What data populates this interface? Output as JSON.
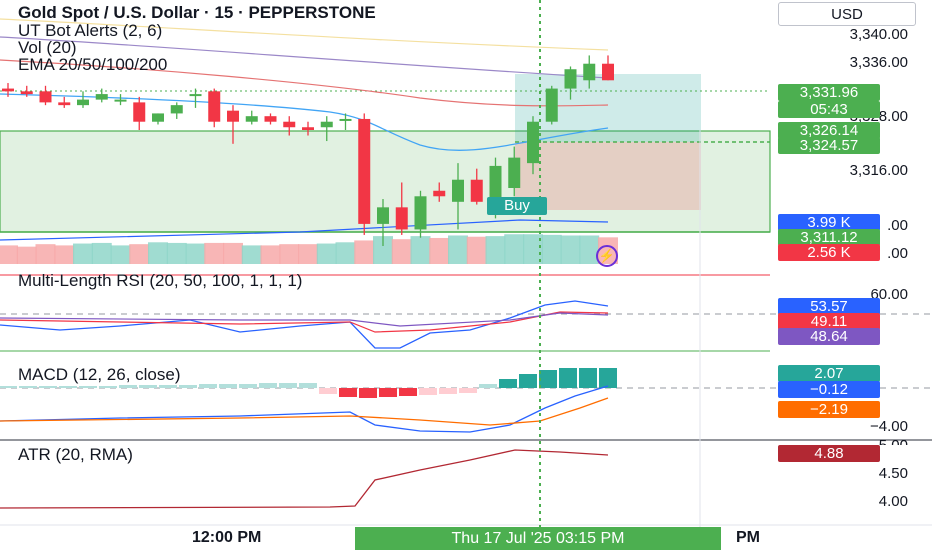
{
  "header": {
    "title": "Gold Spot / U.S. Dollar · 15 · PEPPERSTONE",
    "indicators": [
      "UT Bot Alerts (2, 6)",
      "Vol (20)",
      "EMA 20/50/100/200"
    ],
    "currency": "USD"
  },
  "price_axis": {
    "ticks": [
      "3,340.00",
      "3,336.00",
      "3,328.00",
      "3,316.00"
    ],
    "partial_tick": ".00"
  },
  "badges": {
    "last_price": "3,331.96",
    "countdown": "05:43",
    "level_green_1": "3,326.14",
    "level_green_2": "3,324.57",
    "volume_blue": "3.99 K",
    "level_green_3": "3,311.12",
    "volume_red": "2.56 K",
    "rsi_blue": "53.57",
    "rsi_red": "49.11",
    "rsi_purple": "48.64",
    "macd_hist": "2.07",
    "macd_line": "−0.12",
    "signal_line": "−2.19",
    "atr": "4.88"
  },
  "signals": {
    "buy": "Buy"
  },
  "rsi_pane": {
    "label": "Multi-Length RSI (20, 50, 100, 1, 1, 1)",
    "tick": "60.00"
  },
  "macd_pane": {
    "label": "MACD (12, 26, close)",
    "tick": "−4.00",
    "partial_tick": "5.00"
  },
  "atr_pane": {
    "label": "ATR (20, RMA)",
    "ticks": [
      "4.50",
      "4.00"
    ]
  },
  "time_axis": {
    "label_noon": "12:00 PM",
    "label_pm": "PM",
    "crosshair": "Thu 17 Jul '25    03:15 PM"
  },
  "colors": {
    "up": "#4caf50",
    "down": "#f23645",
    "blue": "#2962ff",
    "red_badge": "#f23645",
    "purple": "#7e57c2",
    "teal": "#26a69a",
    "orange": "#ff6d00",
    "atr": "#b22833"
  },
  "chart_data": {
    "type": "candlestick",
    "candles": [
      {
        "o": 3330.5,
        "h": 3331.5,
        "l": 3329.0,
        "c": 3330.0
      },
      {
        "o": 3330.0,
        "h": 3331.0,
        "l": 3329.0,
        "c": 3329.5
      },
      {
        "o": 3330.0,
        "h": 3331.0,
        "l": 3327.5,
        "c": 3328.0
      },
      {
        "o": 3328.0,
        "h": 3329.0,
        "l": 3327.0,
        "c": 3327.5
      },
      {
        "o": 3327.5,
        "h": 3330.0,
        "l": 3327.0,
        "c": 3328.5
      },
      {
        "o": 3328.5,
        "h": 3330.5,
        "l": 3328.0,
        "c": 3329.5
      },
      {
        "o": 3328.5,
        "h": 3329.5,
        "l": 3327.5,
        "c": 3328.5
      },
      {
        "o": 3328.0,
        "h": 3329.0,
        "l": 3323.0,
        "c": 3324.5
      },
      {
        "o": 3324.5,
        "h": 3326.0,
        "l": 3324.0,
        "c": 3326.0
      },
      {
        "o": 3326.0,
        "h": 3328.0,
        "l": 3325.0,
        "c": 3327.5
      },
      {
        "o": 3329.5,
        "h": 3330.5,
        "l": 3327.0,
        "c": 3329.5
      },
      {
        "o": 3330.0,
        "h": 3330.5,
        "l": 3323.5,
        "c": 3324.5
      },
      {
        "o": 3326.5,
        "h": 3327.5,
        "l": 3320.5,
        "c": 3324.5
      },
      {
        "o": 3324.5,
        "h": 3326.5,
        "l": 3324.0,
        "c": 3325.5
      },
      {
        "o": 3325.5,
        "h": 3326.0,
        "l": 3324.0,
        "c": 3324.5
      },
      {
        "o": 3324.5,
        "h": 3325.5,
        "l": 3322.0,
        "c": 3323.5
      },
      {
        "o": 3323.5,
        "h": 3324.5,
        "l": 3322.0,
        "c": 3323.0
      },
      {
        "o": 3323.5,
        "h": 3325.5,
        "l": 3321.0,
        "c": 3324.5
      },
      {
        "o": 3325.0,
        "h": 3326.0,
        "l": 3323.0,
        "c": 3325.0
      },
      {
        "o": 3325.0,
        "h": 3326.0,
        "l": 3304.0,
        "c": 3306.0
      },
      {
        "o": 3306.0,
        "h": 3310.5,
        "l": 3302.0,
        "c": 3309.0
      },
      {
        "o": 3309.0,
        "h": 3313.5,
        "l": 3304.0,
        "c": 3305.0
      },
      {
        "o": 3305.0,
        "h": 3312.0,
        "l": 3303.5,
        "c": 3311.0
      },
      {
        "o": 3312.0,
        "h": 3313.5,
        "l": 3310.0,
        "c": 3311.0
      },
      {
        "o": 3310.0,
        "h": 3317.0,
        "l": 3305.0,
        "c": 3314.0
      },
      {
        "o": 3314.0,
        "h": 3316.0,
        "l": 3309.5,
        "c": 3310.0
      },
      {
        "o": 3308.5,
        "h": 3318.0,
        "l": 3307.0,
        "c": 3316.5
      },
      {
        "o": 3312.5,
        "h": 3320.0,
        "l": 3311.0,
        "c": 3318.0
      },
      {
        "o": 3317.0,
        "h": 3325.5,
        "l": 3315.0,
        "c": 3324.5
      },
      {
        "o": 3324.5,
        "h": 3331.0,
        "l": 3324.0,
        "c": 3330.5
      },
      {
        "o": 3330.5,
        "h": 3334.5,
        "l": 3328.5,
        "c": 3334.0
      },
      {
        "o": 3332.0,
        "h": 3336.5,
        "l": 3330.5,
        "c": 3335.0
      },
      {
        "o": 3335.0,
        "h": 3336.5,
        "l": 3332.0,
        "c": 3332.0
      }
    ],
    "volume": [
      30,
      28,
      32,
      30,
      33,
      34,
      30,
      32,
      35,
      34,
      33,
      34,
      34,
      30,
      30,
      32,
      32,
      33,
      35,
      38,
      45,
      40,
      45,
      42,
      46,
      44,
      45,
      48,
      48,
      47,
      46,
      46,
      43
    ],
    "price_ylim": [
      3302,
      3344
    ]
  }
}
